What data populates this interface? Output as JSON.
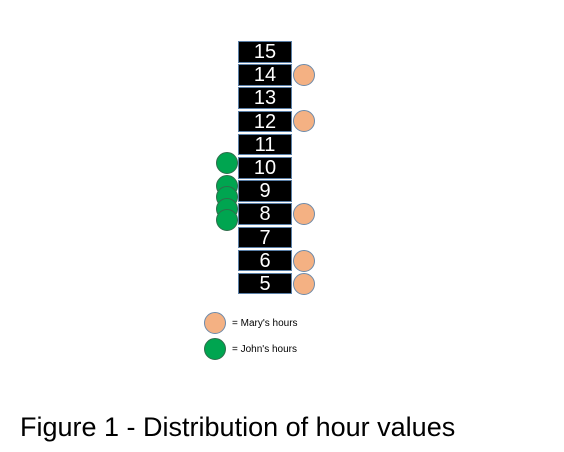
{
  "scale": {
    "values": [
      15,
      14,
      13,
      12,
      11,
      10,
      9,
      8,
      7,
      6,
      5
    ]
  },
  "mary": {
    "hours": [
      14,
      12,
      8,
      6,
      5
    ],
    "color": "#f4b183"
  },
  "john": {
    "hours": [
      10,
      9,
      9,
      8,
      8
    ],
    "color": "#00a550"
  },
  "legend": {
    "mary_label": "= Mary's hours",
    "john_label": "= John's hours"
  },
  "caption": "Figure 1 - Distribution of hour values"
}
